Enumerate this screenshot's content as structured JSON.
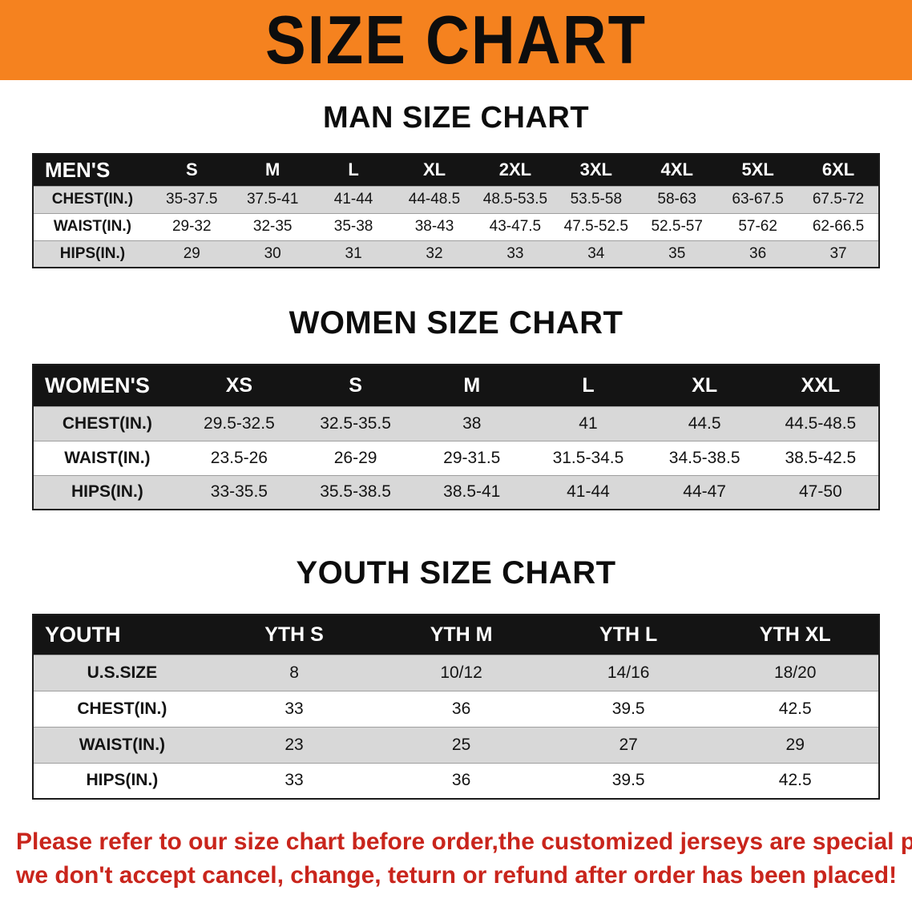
{
  "colors": {
    "banner_bg": "#f5821f",
    "header_bg": "#141414",
    "row_stripe": "#d8d8d8",
    "footer_red": "#c9251c"
  },
  "banner": {
    "title": "SIZE CHART"
  },
  "sections": [
    {
      "heading": "MAN SIZE CHART",
      "table": {
        "label": "MEN'S",
        "columns": [
          "S",
          "M",
          "L",
          "XL",
          "2XL",
          "3XL",
          "4XL",
          "5XL",
          "6XL"
        ],
        "rows": [
          {
            "label": "CHEST(IN.)",
            "values": [
              "35-37.5",
              "37.5-41",
              "41-44",
              "44-48.5",
              "48.5-53.5",
              "53.5-58",
              "58-63",
              "63-67.5",
              "67.5-72"
            ]
          },
          {
            "label": "WAIST(IN.)",
            "values": [
              "29-32",
              "32-35",
              "35-38",
              "38-43",
              "43-47.5",
              "47.5-52.5",
              "52.5-57",
              "57-62",
              "62-66.5"
            ]
          },
          {
            "label": "HIPS(IN.)",
            "values": [
              "29",
              "30",
              "31",
              "32",
              "33",
              "34",
              "35",
              "36",
              "37"
            ]
          }
        ]
      }
    },
    {
      "heading": "WOMEN SIZE CHART",
      "table": {
        "label": "WOMEN'S",
        "columns": [
          "XS",
          "S",
          "M",
          "L",
          "XL",
          "XXL"
        ],
        "rows": [
          {
            "label": "CHEST(IN.)",
            "values": [
              "29.5-32.5",
              "32.5-35.5",
              "38",
              "41",
              "44.5",
              "44.5-48.5"
            ]
          },
          {
            "label": "WAIST(IN.)",
            "values": [
              "23.5-26",
              "26-29",
              "29-31.5",
              "31.5-34.5",
              "34.5-38.5",
              "38.5-42.5"
            ]
          },
          {
            "label": "HIPS(IN.)",
            "values": [
              "33-35.5",
              "35.5-38.5",
              "38.5-41",
              "41-44",
              "44-47",
              "47-50"
            ]
          }
        ]
      }
    },
    {
      "heading": "YOUTH SIZE CHART",
      "table": {
        "label": "YOUTH",
        "columns": [
          "YTH S",
          "YTH M",
          "YTH L",
          "YTH XL"
        ],
        "rows": [
          {
            "label": "U.S.SIZE",
            "values": [
              "8",
              "10/12",
              "14/16",
              "18/20"
            ]
          },
          {
            "label": "CHEST(IN.)",
            "values": [
              "33",
              "36",
              "39.5",
              "42.5"
            ]
          },
          {
            "label": "WAIST(IN.)",
            "values": [
              "23",
              "25",
              "27",
              "29"
            ]
          },
          {
            "label": "HIPS(IN.)",
            "values": [
              "33",
              "36",
              "39.5",
              "42.5"
            ]
          }
        ]
      }
    }
  ],
  "footer": {
    "line1": "Please refer to our size chart before order,the customized jerseys are special products,",
    "line2": "we don't accept cancel, change, teturn or refund after order has been placed!"
  }
}
